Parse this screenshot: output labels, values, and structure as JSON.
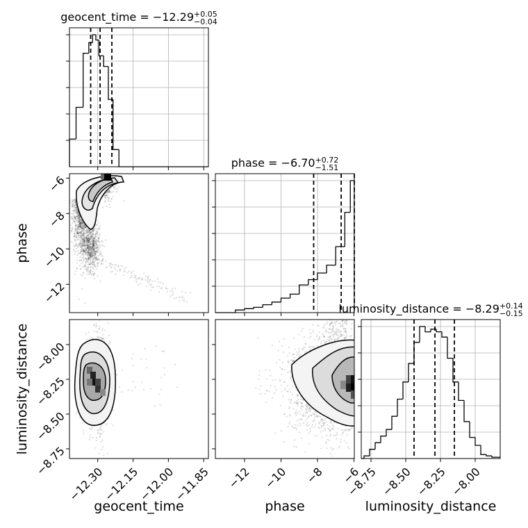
{
  "chart_data": [
    {
      "panel": "diag-geocent_time",
      "type": "histogram",
      "title_prefix": "geocent_time = −12.29",
      "title_sup": "+0.05",
      "title_sub": "−0.04",
      "xlim": [
        -12.42,
        -11.83
      ],
      "bin_edges": [
        -12.42,
        -12.392,
        -12.362,
        -12.338,
        -12.322,
        -12.308,
        -12.295,
        -12.275,
        -12.255,
        -12.235,
        -12.21,
        -11.83
      ],
      "counts": [
        0.21,
        0.45,
        0.86,
        0.94,
        1.0,
        0.96,
        0.84,
        0.76,
        0.51,
        0.13,
        0.0
      ],
      "quantiles": [
        -12.33,
        -12.29,
        -12.24
      ],
      "grid": true
    },
    {
      "panel": "diag-phase",
      "type": "histogram",
      "title_prefix": "phase = −6.70",
      "title_sup": "+0.72",
      "title_sub": "−1.51",
      "xlim": [
        -13.6,
        -5.98
      ],
      "bin_edges": [
        -13.6,
        -12.5,
        -12.0,
        -11.5,
        -11.0,
        -10.5,
        -10.0,
        -9.5,
        -9.0,
        -8.5,
        -8.0,
        -7.5,
        -7.0,
        -6.5,
        -6.2,
        -5.98
      ],
      "counts": [
        0.0,
        0.02,
        0.03,
        0.04,
        0.06,
        0.08,
        0.11,
        0.14,
        0.21,
        0.25,
        0.3,
        0.36,
        0.5,
        0.76,
        1.0
      ],
      "quantiles": [
        -8.21,
        -6.7,
        -5.98
      ],
      "grid": true
    },
    {
      "panel": "diag-luminosity_distance",
      "type": "histogram",
      "title_prefix": "luminosity_distance = −8.29",
      "title_sup": "+0.14",
      "title_sub": "−0.15",
      "xlim": [
        -8.82,
        -7.82
      ],
      "bin_edges": [
        -8.82,
        -8.8,
        -8.76,
        -8.72,
        -8.68,
        -8.64,
        -8.6,
        -8.56,
        -8.52,
        -8.48,
        -8.44,
        -8.4,
        -8.36,
        -8.32,
        -8.28,
        -8.24,
        -8.2,
        -8.16,
        -8.12,
        -8.08,
        -8.04,
        -8.0,
        -7.96,
        -7.92,
        -7.88,
        -7.82
      ],
      "counts": [
        0.0,
        0.02,
        0.07,
        0.12,
        0.17,
        0.22,
        0.32,
        0.45,
        0.58,
        0.72,
        0.88,
        1.0,
        0.96,
        0.98,
        0.96,
        0.92,
        0.76,
        0.58,
        0.44,
        0.28,
        0.16,
        0.1,
        0.03,
        0.02,
        0.01
      ],
      "quantiles": [
        -8.44,
        -8.29,
        -8.15
      ],
      "grid": true
    },
    {
      "panel": "pair-geocent_time-phase",
      "type": "contour-scatter",
      "xlim": [
        -12.42,
        -11.83
      ],
      "ylim": [
        -13.6,
        -5.75
      ],
      "density_peak": {
        "x": -12.285,
        "y": -6.0
      },
      "tail_to": {
        "x": -11.9,
        "y": -12.8
      }
    },
    {
      "panel": "pair-geocent_time-luminosity_distance",
      "type": "contour-scatter",
      "xlim": [
        -12.42,
        -11.83
      ],
      "ylim": [
        -8.82,
        -7.82
      ],
      "density_peak": {
        "x": -12.3,
        "y": -8.25
      }
    },
    {
      "panel": "pair-phase-luminosity_distance",
      "type": "contour-scatter",
      "xlim": [
        -13.6,
        -5.98
      ],
      "ylim": [
        -8.82,
        -7.82
      ],
      "density_peak": {
        "x": -6.1,
        "y": -8.3
      }
    }
  ],
  "axes": {
    "geocent_time": {
      "label": "geocent_time",
      "ticks": [
        {
          "value": -12.3,
          "label": "−12.30"
        },
        {
          "value": -12.15,
          "label": "−12.15"
        },
        {
          "value": -12.0,
          "label": "−12.00"
        },
        {
          "value": -11.85,
          "label": "−11.85"
        }
      ]
    },
    "phase": {
      "label": "phase",
      "ticks": [
        {
          "value": -12,
          "label": "−12"
        },
        {
          "value": -10,
          "label": "−10"
        },
        {
          "value": -8,
          "label": "−8"
        },
        {
          "value": -6,
          "label": "−6"
        }
      ]
    },
    "luminosity_distance": {
      "label": "luminosity_distance",
      "ticks": [
        {
          "value": -8.75,
          "label": "−8.75"
        },
        {
          "value": -8.5,
          "label": "−8.50"
        },
        {
          "value": -8.25,
          "label": "−8.25"
        },
        {
          "value": -8.0,
          "label": "−8.00"
        }
      ]
    }
  }
}
